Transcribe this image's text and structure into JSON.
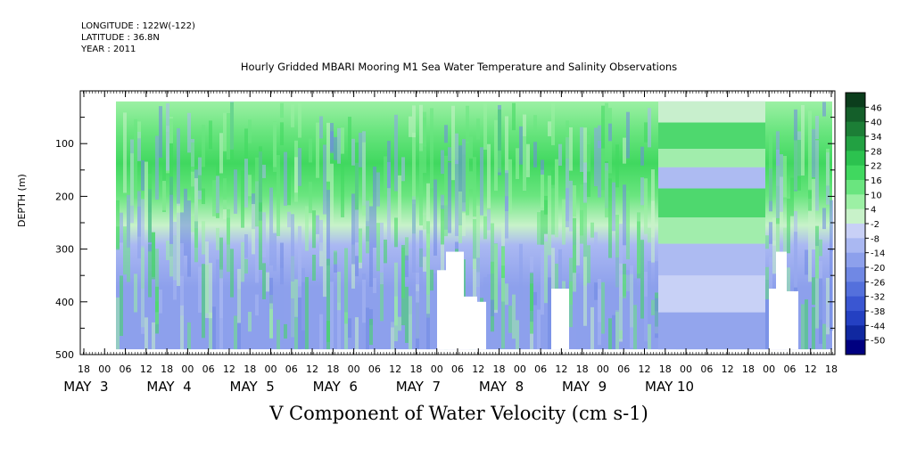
{
  "header": {
    "longitude": "LONGITUDE : 122W(-122)",
    "latitude": "LATITUDE : 36.8N",
    "year": "YEAR : 2011"
  },
  "chart_data": {
    "type": "heatmap",
    "title": "Hourly Gridded MBARI Mooring M1 Sea Water Temperature and Salinity Observations",
    "variable_label": "V Component of Water Velocity (cm s-1)",
    "ylabel": "DEPTH (m)",
    "ylim": [
      500,
      0
    ],
    "y_ticks": [
      100,
      200,
      300,
      400,
      500
    ],
    "x_hour_ticks": [
      "18",
      "00",
      "06",
      "12",
      "18",
      "00",
      "06",
      "12",
      "18",
      "00",
      "06",
      "12",
      "18",
      "00",
      "06",
      "12",
      "18",
      "00",
      "06",
      "12",
      "18",
      "00",
      "06",
      "12",
      "18",
      "00",
      "06",
      "12",
      "18",
      "00",
      "06",
      "12",
      "18",
      "00",
      "06",
      "12",
      "18"
    ],
    "x_day_labels": [
      "MAY  3",
      "MAY  4",
      "MAY  5",
      "MAY  6",
      "MAY  7",
      "MAY  8",
      "MAY  9",
      "MAY 10"
    ],
    "colorbar_levels": [
      46,
      40,
      34,
      28,
      22,
      16,
      10,
      4,
      -2,
      -8,
      -14,
      -20,
      -26,
      -32,
      -38,
      -44,
      -50
    ],
    "colorbar_colors": [
      "#0b3d1c",
      "#145f2a",
      "#1c7e36",
      "#22a142",
      "#2cc24f",
      "#40d85f",
      "#6ae57f",
      "#9cf0a4",
      "#c8f2c9",
      "#c8d0f6",
      "#aab8f2",
      "#8da0ec",
      "#7088e4",
      "#5470dc",
      "#3a56d2",
      "#2440c2",
      "#1028a0",
      "#000080"
    ],
    "field_summary": {
      "green_band": "roughly 20-250 m depth, positive values (northward)",
      "blue_band": "roughly 250-490 m depth, negative values (southward)"
    }
  }
}
